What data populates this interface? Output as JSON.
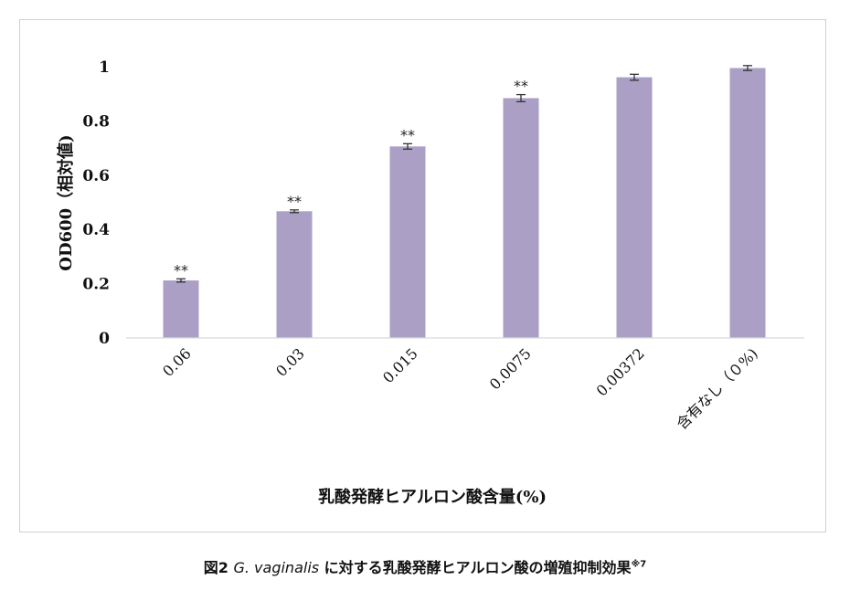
{
  "chart_data": {
    "type": "bar",
    "categories": [
      "0.06",
      "0.03",
      "0.015",
      "0.0075",
      "0.00372",
      "含有なし（０%)"
    ],
    "values": [
      0.212,
      0.467,
      0.706,
      0.884,
      0.961,
      0.995
    ],
    "errors": [
      0.006,
      0.005,
      0.01,
      0.013,
      0.011,
      0.009
    ],
    "significance": [
      "**",
      "**",
      "**",
      "**",
      "",
      ""
    ],
    "xlabel": "乳酸発酵ヒアルロン酸含量(%)",
    "ylabel": "OD600（相対値)",
    "ylim": [
      0,
      1
    ],
    "yticks": [
      "0",
      "0.2",
      "0.4",
      "0.6",
      "0.8",
      "1"
    ],
    "bar_color": "#ab9fc5",
    "grid": false
  },
  "caption": {
    "prefix": "図2 ",
    "species": "G. vaginalis",
    "text": " に対する乳酸発酵ヒアルロン酸の増殖抑制効果",
    "note": "※7"
  }
}
